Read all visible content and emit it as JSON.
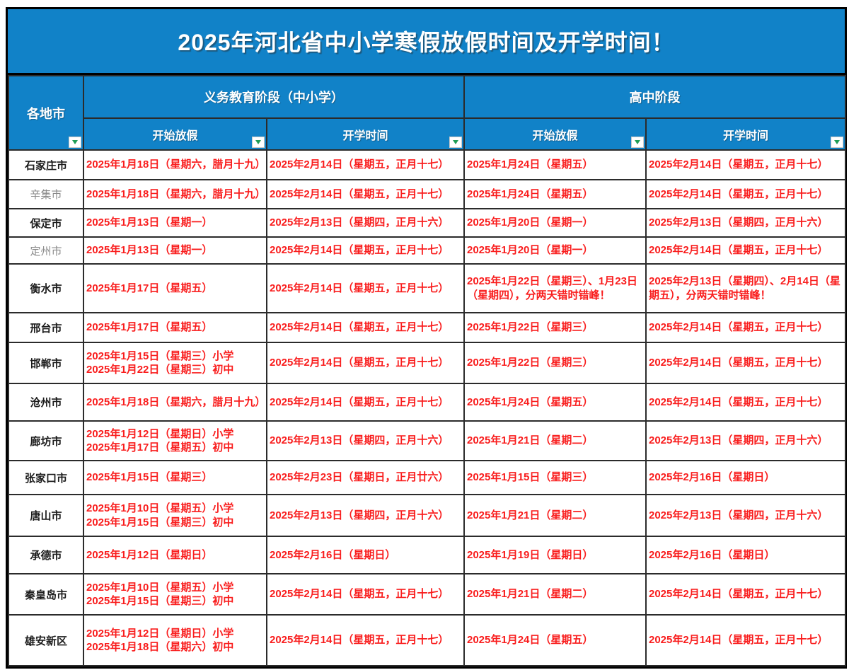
{
  "title": "2025年河北省中小学寒假放假时间及开学时间！",
  "colors": {
    "header_blue": "#1182C8",
    "date_red": "#F91D1D",
    "muted_city_gray": "#8A8A8A",
    "filter_arrow_green": "#1F9D55"
  },
  "icons": {
    "filter_dropdown": "green-down-triangle-in-white-box"
  },
  "table": {
    "region_header": "各地市",
    "groups": [
      {
        "label": "义务教育阶段（中小学）"
      },
      {
        "label": "高中阶段"
      }
    ],
    "sub_headers": [
      "开始放假",
      "开学时间",
      "开始放假",
      "开学时间"
    ],
    "rows": [
      {
        "city": "石家庄市",
        "muted": false,
        "cells": [
          "2025年1月18日（星期六，腊月十九）",
          "2025年2月14日（星期五，正月十七）",
          "2025年1月24日（星期五）",
          "2025年2月14日（星期五，正月十七）"
        ]
      },
      {
        "city": "辛集市",
        "muted": true,
        "cells": [
          "2025年1月18日（星期六，腊月十九）",
          "2025年2月14日（星期五，正月十七）",
          "2025年1月24日（星期五）",
          "2025年2月14日（星期五，正月十七）"
        ]
      },
      {
        "city": "保定市",
        "muted": false,
        "cells": [
          "2025年1月13日（星期一）",
          "2025年2月13日（星期四，正月十六）",
          "2025年1月20日（星期一）",
          "2025年2月13日（星期四，正月十六）"
        ]
      },
      {
        "city": "定州市",
        "muted": true,
        "cells": [
          "2025年1月13日（星期一）",
          "2025年2月14日（星期五，正月十七）",
          "2025年1月20日（星期一）",
          "2025年2月14日（星期五，正月十七）"
        ]
      },
      {
        "city": "衡水市",
        "muted": false,
        "cells": [
          "2025年1月17日（星期五）",
          "2025年2月14日（星期五，正月十七）",
          "2025年1月22日（星期三）、1月23日（星期四），分两天错时错峰！",
          "2025年2月13日（星期四）、2月14日（星期五），分两天错时错峰！"
        ]
      },
      {
        "city": "邢台市",
        "muted": false,
        "cells": [
          "2025年1月17日（星期五）",
          "2025年2月14日（星期五，正月十七）",
          "2025年1月22日（星期三）",
          "2025年2月14日（星期五，正月十七）"
        ]
      },
      {
        "city": "邯郸市",
        "muted": false,
        "cells": [
          "2025年1月15日（星期三）小学\n2025年1月22日（星期三）初中",
          "2025年2月14日（星期五，正月十七）",
          "2025年1月22日（星期三）",
          "2025年2月14日（星期五，正月十七）"
        ]
      },
      {
        "city": "沧州市",
        "muted": false,
        "cells": [
          "2025年1月18日（星期六，腊月十九）",
          "2025年2月14日（星期五，正月十七）",
          "2025年1月24日（星期五）",
          "2025年2月14日（星期五，正月十七）"
        ]
      },
      {
        "city": "廊坊市",
        "muted": false,
        "cells": [
          "2025年1月12日（星期日）小学\n2025年1月17日（星期五）初中",
          "2025年2月13日（星期四，正月十六）",
          "2025年1月21日（星期二）",
          "2025年2月13日（星期四，正月十六）"
        ]
      },
      {
        "city": "张家口市",
        "muted": false,
        "cells": [
          "2025年1月15日（星期三）",
          "2025年2月23日（星期日，正月廿六）",
          "2025年1月15日（星期三）",
          "2025年2月16日（星期日）"
        ]
      },
      {
        "city": "唐山市",
        "muted": false,
        "cells": [
          "2025年1月10日（星期五）小学\n2025年1月15日（星期三）初中",
          "2025年2月13日（星期四，正月十六）",
          "2025年1月21日（星期二）",
          "2025年2月13日（星期四，正月十六）"
        ]
      },
      {
        "city": "承德市",
        "muted": false,
        "cells": [
          "2025年1月12日（星期日）",
          "2025年2月16日（星期日）",
          "2025年1月19日（星期日）",
          "2025年2月16日（星期日）"
        ]
      },
      {
        "city": "秦皇岛市",
        "muted": false,
        "cells": [
          "2025年1月10日（星期五）小学\n2025年1月15日（星期三）初中",
          "2025年2月14日（星期五，正月十七）",
          "2025年1月21日（星期二）",
          "2025年2月14日（星期五，正月十七）"
        ]
      },
      {
        "city": "雄安新区",
        "muted": false,
        "cells": [
          "2025年1月12日（星期日）小学\n2025年1月18日（星期六）初中",
          "2025年2月14日（星期五，正月十七）",
          "2025年1月24日（星期五）",
          "2025年2月14日（星期五，正月十七）"
        ]
      }
    ]
  }
}
